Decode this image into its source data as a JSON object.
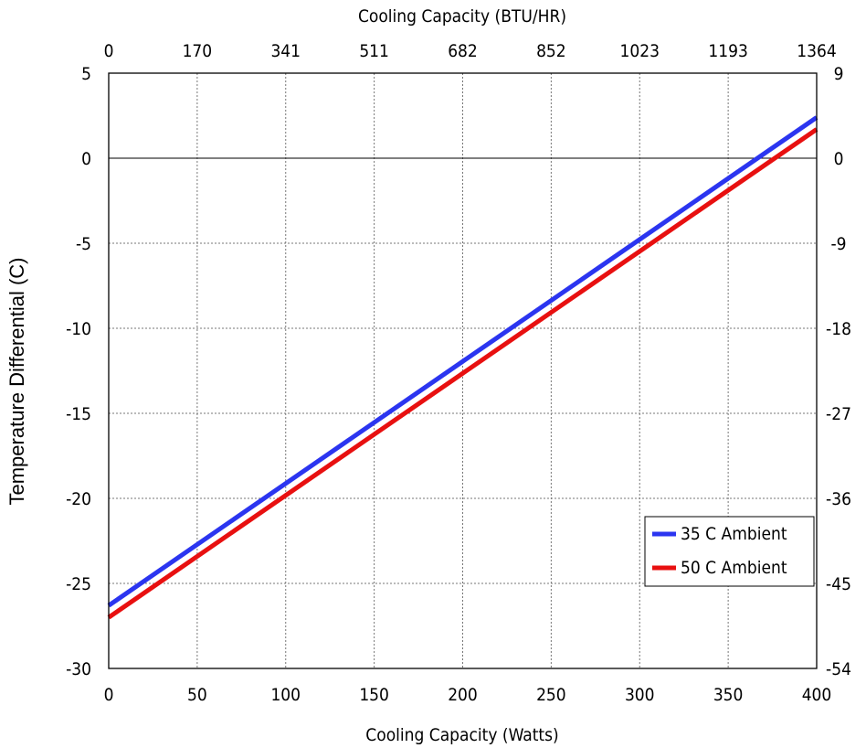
{
  "chart_data": {
    "type": "line",
    "title": "",
    "xlabel": "Cooling Capacity (Watts)",
    "x2label": "Cooling Capacity (BTU/HR)",
    "ylabel": "Temperature Differential (C)",
    "xlim": [
      0,
      400
    ],
    "ylim": [
      -30,
      5
    ],
    "grid": true,
    "legend_position": "lower-right",
    "x_ticks": [
      "0",
      "50",
      "100",
      "150",
      "200",
      "250",
      "300",
      "350",
      "400"
    ],
    "y_ticks": [
      "5",
      "0",
      "-5",
      "-10",
      "-15",
      "-20",
      "-25",
      "-30"
    ],
    "x2_ticks": [
      "0",
      "170",
      "341",
      "511",
      "682",
      "852",
      "1023",
      "1193",
      "1364"
    ],
    "y2_ticks": [
      "9",
      "0",
      "-9",
      "-18",
      "-27",
      "-36",
      "-45",
      "-54"
    ],
    "series": [
      {
        "name": "35 C  Ambient",
        "color": "#2b35f0",
        "x": [
          0,
          400
        ],
        "y": [
          -26.3,
          2.4
        ]
      },
      {
        "name": "50 C  Ambient",
        "color": "#e81010",
        "x": [
          0,
          400
        ],
        "y": [
          -27.0,
          1.7
        ]
      }
    ]
  }
}
